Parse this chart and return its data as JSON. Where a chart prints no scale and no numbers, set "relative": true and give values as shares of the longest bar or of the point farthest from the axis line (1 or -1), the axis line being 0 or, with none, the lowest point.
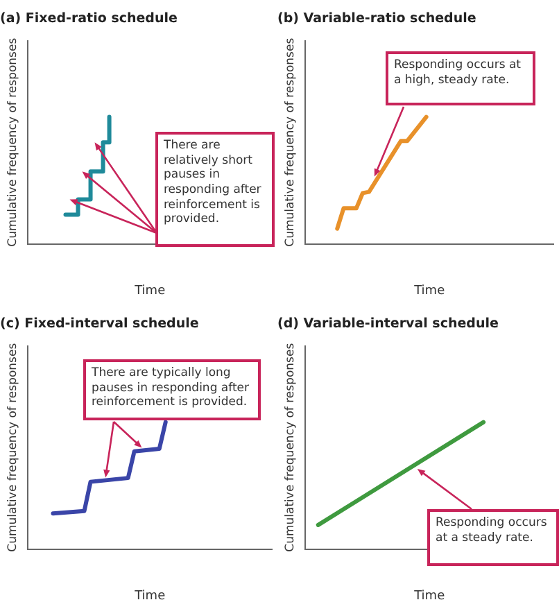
{
  "chart_data": [
    {
      "type": "step",
      "title": "(a) Fixed-ratio schedule",
      "xlabel": "Time",
      "ylabel": "Cumulative frequency of responses",
      "relative": true,
      "grid": false,
      "legend": false,
      "marker": "none",
      "categories": [
        null,
        null,
        null,
        null,
        null,
        null,
        null,
        null,
        null,
        null,
        null,
        null,
        null,
        null,
        null,
        null,
        null,
        null,
        null,
        null,
        null,
        null,
        null,
        null,
        null,
        null,
        null,
        null,
        null,
        null,
        null,
        null,
        null,
        null,
        null,
        null,
        null,
        null,
        null,
        null
      ],
      "series": [
        {
          "color": "#1f8a9a",
          "values": [
            null,
            null,
            null,
            null,
            null,
            null,
            0.23,
            null,
            0.35,
            null,
            0.57,
            null,
            0.8,
            1,
            null,
            null,
            null,
            null,
            null,
            null,
            null,
            null,
            null,
            null,
            null,
            null,
            null,
            null,
            null,
            null,
            null,
            null,
            null,
            null,
            null,
            null,
            null,
            null,
            null,
            null
          ]
        }
      ],
      "annotations": [
        "There are relatively short pauses in responding after reinforcement is provided."
      ]
    },
    {
      "type": "line",
      "title": "(b) Variable-ratio schedule",
      "xlabel": "Time",
      "ylabel": "Cumulative frequency of responses",
      "relative": true,
      "grid": false,
      "legend": false,
      "marker": "none",
      "categories": [
        null,
        null,
        null,
        null,
        null,
        null,
        null,
        null,
        null,
        null,
        null,
        null,
        null,
        null,
        null,
        null,
        null,
        null,
        null,
        null,
        null,
        null,
        null,
        null,
        null,
        null,
        null,
        null,
        null,
        null,
        null,
        null,
        null,
        null,
        null,
        null,
        null,
        null,
        null,
        null
      ],
      "series": [
        {
          "color": "#e8912a",
          "values": [
            null,
            null,
            null,
            null,
            null,
            0.12,
            0.28,
            null,
            0.28,
            0.4,
            0.41,
            null,
            null,
            null,
            null,
            0.81,
            0.81,
            null,
            null,
            1,
            null,
            null,
            null,
            null,
            null,
            null,
            null,
            null,
            null,
            null,
            null,
            null,
            null,
            null,
            null,
            null,
            null,
            null,
            null,
            null
          ]
        }
      ],
      "annotations": [
        "Responding occurs at a high, steady rate."
      ]
    },
    {
      "type": "line",
      "title": "(c) Fixed-interval schedule",
      "xlabel": "Time",
      "ylabel": "Cumulative frequency of responses",
      "relative": true,
      "grid": false,
      "legend": false,
      "marker": "none",
      "categories": [
        null,
        null,
        null,
        null,
        null,
        null,
        null,
        null,
        null,
        null,
        null,
        null,
        null,
        null,
        null,
        null,
        null,
        null,
        null,
        null,
        null,
        null,
        null,
        null,
        null,
        null,
        null,
        null,
        null,
        null,
        null,
        null,
        null,
        null,
        null,
        null,
        null,
        null,
        null,
        null
      ],
      "series": [
        {
          "color": "#3a45a8",
          "values": [
            null,
            null,
            null,
            null,
            0.28,
            null,
            null,
            null,
            null,
            0.3,
            0.53,
            null,
            null,
            null,
            null,
            null,
            0.56,
            0.77,
            null,
            null,
            null,
            0.79,
            1,
            null,
            null,
            null,
            null,
            null,
            null,
            null,
            null,
            null,
            null,
            null,
            null,
            null,
            null,
            null,
            null,
            null
          ]
        }
      ],
      "annotations": [
        "There are typically long pauses in responding after reinforcement is provided."
      ]
    },
    {
      "type": "line",
      "title": "(d) Variable-interval schedule",
      "xlabel": "Time",
      "ylabel": "Cumulative frequency of responses",
      "relative": true,
      "grid": false,
      "legend": false,
      "marker": "none",
      "categories": [
        null,
        null,
        null,
        null,
        null,
        null,
        null,
        null,
        null,
        null,
        null,
        null,
        null,
        null,
        null,
        null,
        null,
        null,
        null,
        null,
        null,
        null,
        null,
        null,
        null,
        null,
        null,
        null,
        null,
        null,
        null,
        null,
        null,
        null,
        null,
        null,
        null,
        null,
        null,
        null
      ],
      "series": [
        {
          "color": "#3f9a3f",
          "values": [
            null,
            null,
            0.19,
            null,
            null,
            null,
            null,
            null,
            null,
            null,
            null,
            null,
            null,
            null,
            null,
            null,
            null,
            null,
            null,
            null,
            null,
            null,
            null,
            null,
            null,
            null,
            null,
            null,
            1,
            null,
            null,
            null,
            null,
            null,
            null,
            null,
            null,
            null,
            null,
            null
          ]
        }
      ],
      "annotations": [
        "Responding occurs at a steady rate."
      ]
    }
  ]
}
